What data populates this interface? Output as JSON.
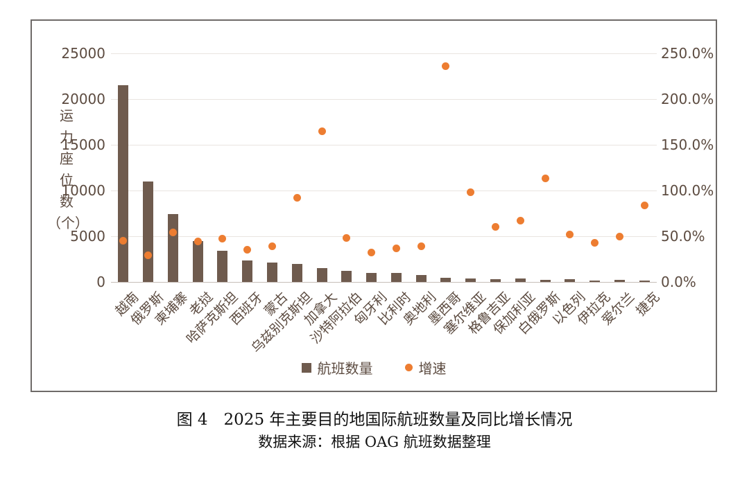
{
  "figure": {
    "caption_line1": "图 4　2025 年主要目的地国际航班数量及同比增长情况",
    "caption_line2": "数据来源：根据 OAG 航班数据整理"
  },
  "colors": {
    "bar": "#6f5b4e",
    "dot": "#ed7d31",
    "axis_text": "#5c4b40",
    "gridline": "#e9e4e0",
    "border": "#6e6a68"
  },
  "chart_data": {
    "type": "bar",
    "subtype": "combo bar + scatter, dual axis",
    "title": "",
    "categories": [
      "越南",
      "俄罗斯",
      "柬埔寨",
      "老挝",
      "哈萨克斯坦",
      "西班牙",
      "蒙古",
      "乌兹别克斯坦",
      "加拿大",
      "沙特阿拉伯",
      "匈牙利",
      "比利时",
      "奥地利",
      "墨西哥",
      "塞尔维亚",
      "格鲁吉亚",
      "保加利亚",
      "白俄罗斯",
      "以色列",
      "伊拉克",
      "爱尔兰",
      "捷克"
    ],
    "series": [
      {
        "name": "航班数量",
        "type": "bar",
        "axis": "left",
        "values": [
          21500,
          11000,
          7400,
          4500,
          3400,
          2350,
          2150,
          2000,
          1550,
          1200,
          1000,
          960,
          750,
          450,
          400,
          330,
          400,
          250,
          300,
          175,
          230,
          150
        ]
      },
      {
        "name": "增速",
        "type": "scatter",
        "axis": "right",
        "values_percent": [
          45,
          29,
          54,
          44,
          47,
          35,
          39,
          92,
          165,
          48,
          32,
          37,
          39,
          236,
          98,
          60,
          67,
          113,
          52,
          43,
          50,
          84
        ]
      }
    ],
    "left_axis": {
      "title": "运力座位数（个）",
      "title_chars": [
        "运",
        "力",
        "座",
        "位",
        "数",
        "（个）"
      ],
      "ticks": [
        "0",
        "5000",
        "10000",
        "15000",
        "20000",
        "25000"
      ],
      "lim": [
        0,
        25000
      ]
    },
    "right_axis": {
      "ticks": [
        "0.0%",
        "50.0%",
        "100.0%",
        "150.0%",
        "200.0%",
        "250.0%"
      ],
      "lim": [
        0,
        250
      ]
    },
    "legend": {
      "position": "bottom",
      "entries": [
        {
          "label": "航班数量",
          "marker": "square"
        },
        {
          "label": "增速",
          "marker": "dot"
        }
      ]
    },
    "grid": true
  }
}
